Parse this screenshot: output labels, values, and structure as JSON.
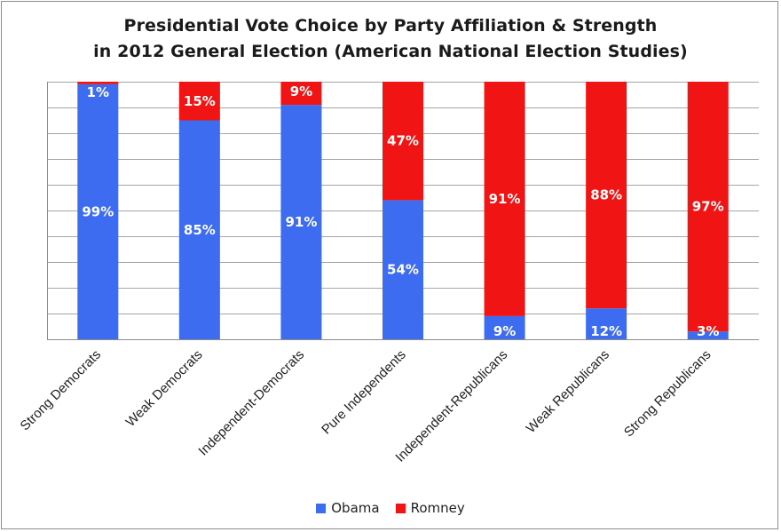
{
  "chart_data": {
    "type": "bar",
    "stacked": true,
    "title_line_1": "Presidential Vote Choice by Party Affiliation & Strength",
    "title_line_2": "in 2012 General Election (American National Election Studies)",
    "categories": [
      "Strong Democrats",
      "Weak Democrats",
      "Independent-Democrats",
      "Pure Independents",
      "Independent-Republicans",
      "Weak Republicans",
      "Strong Republicans"
    ],
    "series": [
      {
        "name": "Obama",
        "color": "#3d6cf0",
        "values": [
          99,
          85,
          91,
          54,
          9,
          12,
          3
        ],
        "labels": [
          "99%",
          "85%",
          "91%",
          "54%",
          "9%",
          "12%",
          "3%"
        ]
      },
      {
        "name": "Romney",
        "color": "#f01414",
        "values": [
          1,
          15,
          9,
          47,
          91,
          88,
          97
        ],
        "labels": [
          "1%",
          "15%",
          "9%",
          "47%",
          "91%",
          "88%",
          "97%"
        ]
      }
    ],
    "ylim": [
      0,
      100
    ],
    "grid": true,
    "legend_position": "bottom",
    "gridline_color": "#a6a6a6"
  }
}
